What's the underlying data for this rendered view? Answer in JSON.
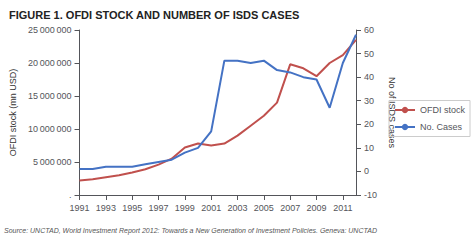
{
  "chart_data": {
    "type": "line",
    "title": "FIGURE 1. OFDI STOCK AND NUMBER OF ISDS CASES",
    "source": "Source: UNCTAD, World Investment Report 2012: Towards a New Generation of Investment Policies. Geneva: UNCTAD",
    "xlabel": null,
    "ylabel": "OFDI stock (mn USD)",
    "y2label": "No of ISDS cases",
    "x": [
      1991,
      1992,
      1993,
      1994,
      1995,
      1996,
      1997,
      1998,
      1999,
      2000,
      2001,
      2002,
      2003,
      2004,
      2005,
      2006,
      2007,
      2008,
      2009,
      2010,
      2011,
      2012
    ],
    "series": [
      {
        "name": "OFDI stock",
        "color": "#c0504d",
        "axis": "y",
        "values": [
          2200000,
          2400000,
          2700000,
          3000000,
          3400000,
          3900000,
          4600000,
          5500000,
          7200000,
          7800000,
          7500000,
          7800000,
          9000000,
          10500000,
          12000000,
          14000000,
          19800000,
          19200000,
          18000000,
          20000000,
          21200000,
          23500000
        ]
      },
      {
        "name": "No. Cases",
        "color": "#4472c4",
        "axis": "y2",
        "values": [
          1,
          1,
          2,
          2,
          2,
          3,
          4,
          5,
          8,
          10,
          17,
          47,
          47,
          46,
          47,
          43,
          42,
          40,
          39,
          27,
          46,
          58
        ]
      }
    ],
    "xlim": [
      1991,
      2012
    ],
    "xticks": [
      1991,
      1993,
      1995,
      1997,
      1999,
      2001,
      2003,
      2005,
      2007,
      2009,
      2011
    ],
    "ylim": [
      0,
      25000000
    ],
    "yticks": [
      {
        "value": 0,
        "label": "."
      },
      {
        "value": 5000000,
        "label": "5 000 000"
      },
      {
        "value": 10000000,
        "label": "10 000 000"
      },
      {
        "value": 15000000,
        "label": "15 000 000"
      },
      {
        "value": 20000000,
        "label": "20 000 000"
      },
      {
        "value": 25000000,
        "label": "25 000 000"
      }
    ],
    "y2lim": [
      -10,
      60
    ],
    "y2ticks": [
      -10,
      0,
      10,
      20,
      30,
      40,
      50,
      60
    ],
    "grid": false,
    "legend": "right"
  }
}
